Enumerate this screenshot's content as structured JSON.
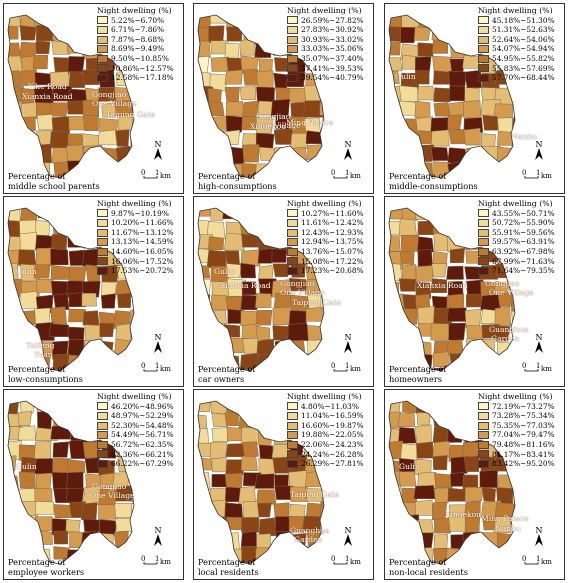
{
  "legend_title": "Night dwelling (%)",
  "north_label": "N",
  "scale": {
    "zero": "0",
    "one": "1",
    "unit": "km"
  },
  "colors": [
    "#fdf6c4",
    "#f1dc9a",
    "#e2bd73",
    "#d49a4e",
    "#bf7a31",
    "#8a4516",
    "#5e1a0a"
  ],
  "panels": [
    {
      "caption": [
        "Percentage of",
        "middle school parents"
      ],
      "legend": [
        "5.22%~6.70%",
        "6.71%~7.86%",
        "7.87%~8.68%",
        "8.69%~9.49%",
        "9.50%~10.85%",
        "10.86%~12.57%",
        "12.58%~17.18%"
      ],
      "places": [
        "Yihe Road",
        "Xianxia Road",
        "Gongjiao",
        "One Village",
        "Taiping Gate"
      ]
    },
    {
      "caption": [
        "Percentage of",
        "high-consumptions"
      ],
      "legend": [
        "26.59%~27.82%",
        "27.83%~30.92%",
        "30.93%~33.02%",
        "33.03%~35.06%",
        "35.07%~37.40%",
        "37.41%~39.53%",
        "39.54%~40.79%"
      ],
      "places": [
        "Gongjiao",
        "One Village",
        "Xinjiekou",
        "Ming Palace"
      ]
    },
    {
      "caption": [
        "Percentage of",
        "middle-consumptions"
      ],
      "legend": [
        "45.18%~51.30%",
        "51.31%~52.63%",
        "52.64%~54.06%",
        "54.07%~54.94%",
        "54.95%~55.82%",
        "55.83%~57.69%",
        "57.70%~68.44%"
      ],
      "places": [
        "Gulin",
        "Nanhu"
      ]
    },
    {
      "caption": [
        "Percentage of",
        "low-consumptions"
      ],
      "legend": [
        "9.87%~10.19%",
        "10.20%~11.66%",
        "11.67%~13.12%",
        "13.13%~14.59%",
        "14.60%~16.05%",
        "16.06%~17.52%",
        "17.53%~20.72%"
      ],
      "places": [
        "Gulin",
        "Taifeng",
        "Yuan"
      ]
    },
    {
      "caption": [
        "Percentage of",
        "car owners"
      ],
      "legend": [
        "10.27%~11.60%",
        "11.61%~12.42%",
        "12.43%~12.93%",
        "12.94%~13.75%",
        "13.76%~15.07%",
        "15.08%~17.22%",
        "17.23%~20.68%"
      ],
      "places": [
        "Gulin",
        "Xianxia Road",
        "Gongjiao",
        "One Village",
        "Taiping Gate"
      ]
    },
    {
      "caption": [
        "Percentage of",
        "homeowners"
      ],
      "legend": [
        "43.55%~50.71%",
        "50.72%~55.90%",
        "55.91%~59.56%",
        "59.57%~63.91%",
        "63.92%~67.98%",
        "67.99%~71.63%",
        "71.64%~79.35%"
      ],
      "places": [
        "Xianxia Road",
        "Gongjiao",
        "One Village",
        "Guanghua",
        "Garden"
      ]
    },
    {
      "caption": [
        "Percentage of",
        "employee workers"
      ],
      "legend": [
        "46.20%~48.96%",
        "48.97%~52.29%",
        "52.30%~54.48%",
        "54.49%~56.71%",
        "56.72%~62.35%",
        "62.36%~66.21%",
        "66.22%~67.29%"
      ],
      "places": [
        "Gulin",
        "Gongjiao",
        "One Village"
      ]
    },
    {
      "caption": [
        "Percentage of",
        "local residents"
      ],
      "legend": [
        "4.80%~11.03%",
        "11.04%~16.59%",
        "16.60%~19.87%",
        "19.88%~22.05%",
        "22.06%~24.23%",
        "24.24%~26.28%",
        "26.29%~27.81%"
      ],
      "places": [
        "Taiping Gate",
        "Guanghua",
        "Garden"
      ]
    },
    {
      "caption": [
        "Percentage of",
        "non-local residents"
      ],
      "legend": [
        "72.19%~73.27%",
        "73.28%~75.34%",
        "75.35%~77.03%",
        "77.04%~79.47%",
        "79.48%~81.16%",
        "81.17%~83.41%",
        "83.42%~95.20%"
      ],
      "places": [
        "Gulin",
        "Xinjiekou",
        "Ming Palace",
        "Nanhu"
      ]
    }
  ]
}
